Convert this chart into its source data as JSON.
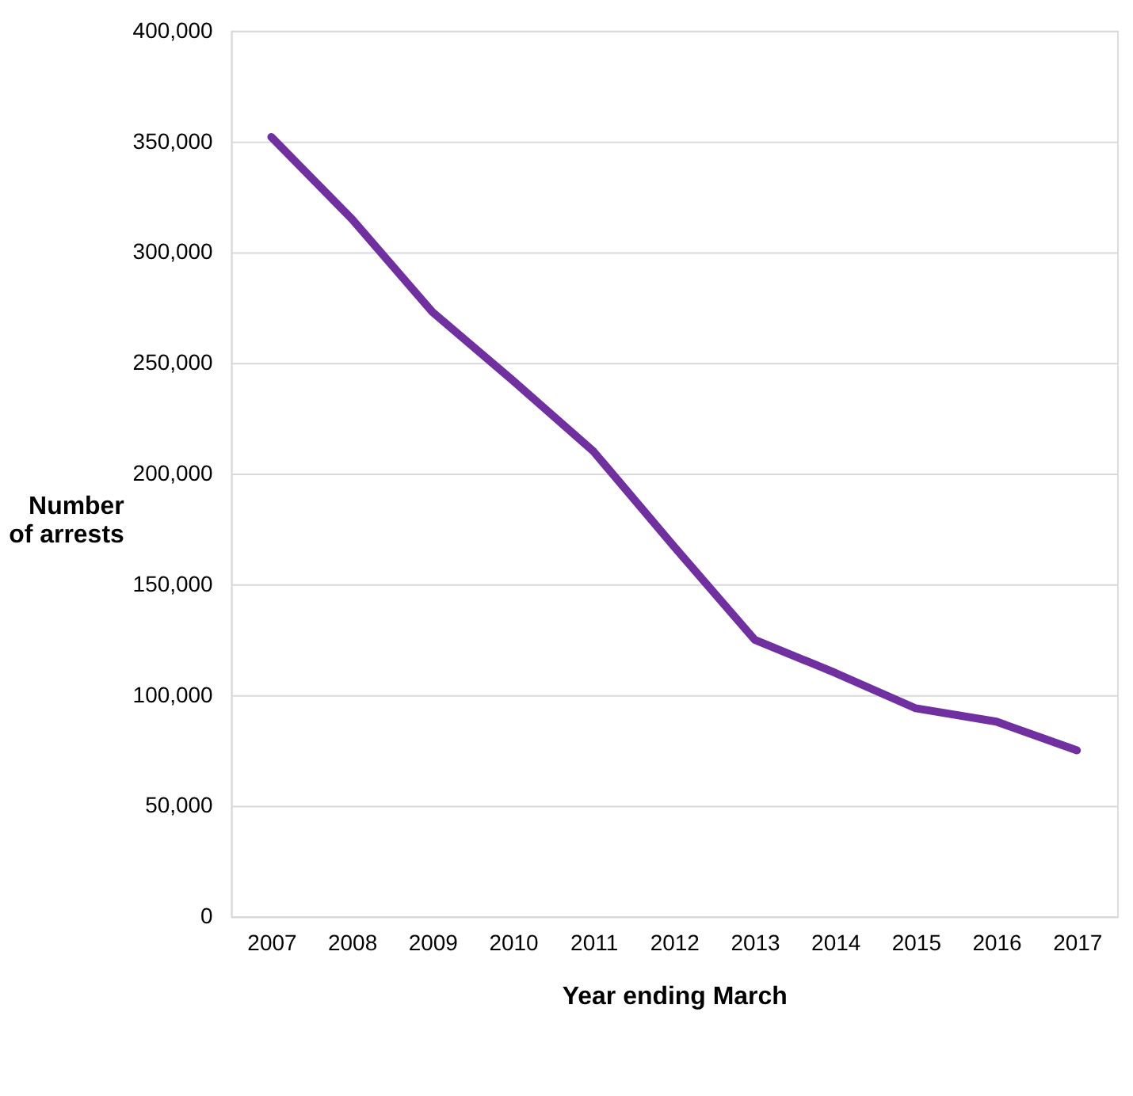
{
  "chart_data": {
    "type": "line",
    "xlabel": "Year ending March",
    "ylabel": "Number of arrests",
    "categories": [
      "2007",
      "2008",
      "2009",
      "2010",
      "2011",
      "2012",
      "2013",
      "2014",
      "2015",
      "2016",
      "2017"
    ],
    "series": [
      {
        "color": "#7030a0",
        "values": [
          352000,
          315000,
          273000,
          242000,
          210000,
          167000,
          125000,
          110000,
          94000,
          88000,
          75000
        ]
      }
    ],
    "ylim": [
      0,
      400000
    ],
    "yticks": [
      0,
      {
        "value": 50000,
        "label": "50,000"
      },
      {
        "value": 100000,
        "label": "100,000"
      },
      {
        "value": 150000,
        "label": "150,000"
      },
      {
        "value": 200000,
        "label": "200,000"
      },
      {
        "value": 250000,
        "label": "250,000"
      },
      {
        "value": 300000,
        "label": "300,000"
      },
      {
        "value": 350000,
        "label": "350,000"
      },
      {
        "value": 400000,
        "label": "400,000"
      }
    ],
    "grid": "y",
    "legend": false,
    "marker": "none",
    "line_style": "solid"
  }
}
